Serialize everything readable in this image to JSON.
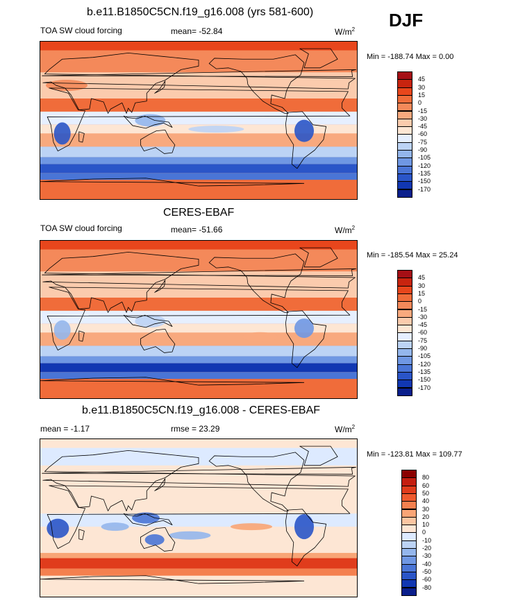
{
  "season": "DJF",
  "panels": [
    {
      "title": "b.e11.B1850C5CN.f19_g16.008 (yrs 581-600)",
      "left_label": "TOA SW cloud forcing",
      "stat_label": "mean= -52.84",
      "units": "W/m",
      "units_sup": "2",
      "minmax": "Min = -188.74 Max =   0.00",
      "colorbar_labels": [
        "45",
        "30",
        "15",
        "0",
        "-15",
        "-30",
        "-45",
        "-60",
        "-75",
        "-90",
        "-105",
        "-120",
        "-135",
        "-150",
        "-170"
      ],
      "colorbar_colors": [
        "#a50f15",
        "#c8240f",
        "#e8461c",
        "#f06c3a",
        "#f4895a",
        "#f8a97e",
        "#fbcbad",
        "#fde6d4",
        "#e6efff",
        "#bcd3f5",
        "#94b6ec",
        "#6f97e3",
        "#4a75d6",
        "#2a55c8",
        "#1137b2",
        "#0a1f8c"
      ],
      "kind": "model"
    },
    {
      "title": "CERES-EBAF",
      "left_label": "TOA SW cloud forcing",
      "stat_label": "mean= -51.66",
      "units": "W/m",
      "units_sup": "2",
      "minmax": "Min = -185.54 Max = 25.24",
      "colorbar_labels": [
        "45",
        "30",
        "15",
        "0",
        "-15",
        "-30",
        "-45",
        "-60",
        "-75",
        "-90",
        "-105",
        "-120",
        "-135",
        "-150",
        "-170"
      ],
      "colorbar_colors": [
        "#a50f15",
        "#c8240f",
        "#e8461c",
        "#f06c3a",
        "#f4895a",
        "#f8a97e",
        "#fbcbad",
        "#fde6d4",
        "#e6efff",
        "#bcd3f5",
        "#94b6ec",
        "#6f97e3",
        "#4a75d6",
        "#2a55c8",
        "#1137b2",
        "#0a1f8c"
      ],
      "kind": "obs"
    },
    {
      "title": "b.e11.B1850C5CN.f19_g16.008 - CERES-EBAF",
      "left_label": "mean =  -1.17",
      "stat_label": "rmse =  23.29",
      "units": "W/m",
      "units_sup": "2",
      "minmax": "Min = -123.81 Max = 109.77",
      "colorbar_labels": [
        "80",
        "60",
        "50",
        "40",
        "30",
        "20",
        "10",
        "0",
        "-10",
        "-20",
        "-30",
        "-40",
        "-50",
        "-60",
        "-80"
      ],
      "colorbar_colors": [
        "#8b0000",
        "#c41e10",
        "#e03c1c",
        "#ee5a2e",
        "#f4804f",
        "#f8a576",
        "#fbc6a2",
        "#fde6d4",
        "#ddeaff",
        "#bcd3f5",
        "#94b6ec",
        "#6f97e3",
        "#4a75d6",
        "#2a55c8",
        "#1137b2",
        "#0a1f8c"
      ],
      "kind": "diff"
    }
  ],
  "chart_data": [
    {
      "type": "heatmap",
      "title": "b.e11.B1850C5CN.f19_g16.008 (yrs 581-600)",
      "variable": "TOA SW cloud forcing",
      "units": "W/m2",
      "mean": -52.84,
      "min": -188.74,
      "max": 0.0,
      "levels": [
        45,
        30,
        15,
        0,
        -15,
        -30,
        -45,
        -60,
        -75,
        -90,
        -105,
        -120,
        -135,
        -150,
        -170
      ]
    },
    {
      "type": "heatmap",
      "title": "CERES-EBAF",
      "variable": "TOA SW cloud forcing",
      "units": "W/m2",
      "mean": -51.66,
      "min": -185.54,
      "max": 25.24,
      "levels": [
        45,
        30,
        15,
        0,
        -15,
        -30,
        -45,
        -60,
        -75,
        -90,
        -105,
        -120,
        -135,
        -150,
        -170
      ]
    },
    {
      "type": "heatmap",
      "title": "b.e11.B1850C5CN.f19_g16.008 - CERES-EBAF",
      "units": "W/m2",
      "mean": -1.17,
      "rmse": 23.29,
      "min": -123.81,
      "max": 109.77,
      "levels": [
        80,
        60,
        50,
        40,
        30,
        20,
        10,
        0,
        -10,
        -20,
        -30,
        -40,
        -50,
        -60,
        -80
      ]
    }
  ]
}
